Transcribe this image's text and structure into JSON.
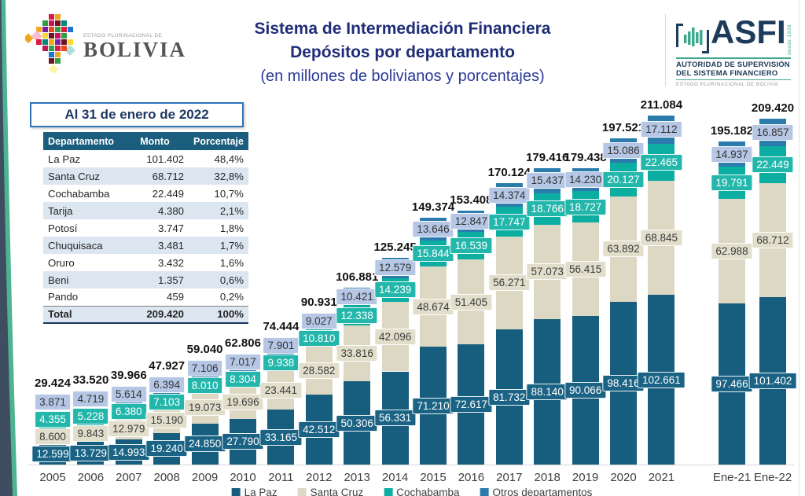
{
  "header": {
    "bolivia_logo": {
      "icon": "bolivia-mosaic-icon",
      "line1": "ESTADO PLURINACIONAL DE",
      "line2": "BOLIVIA"
    },
    "title_line1": "Sistema de Intermediación Financiera",
    "title_line2": "Depósitos por departamento",
    "title_line3": "(en millones de bolivianos y porcentajes)",
    "asfi": {
      "icon": "equalizer-bars-icon",
      "name": "ASFI",
      "since": "desde 1928",
      "sub1": "AUTORIDAD DE SUPERVISIÓN",
      "sub2": "DEL SISTEMA FINANCIERO",
      "sub3": "ESTADO PLURINACIONAL DE BOLIVIA"
    }
  },
  "summary": {
    "box_title": "Al 31 de enero de 2022",
    "table": {
      "headers": [
        "Departamento",
        "Monto",
        "Porcentaje"
      ],
      "rows": [
        [
          "La Paz",
          "101.402",
          "48,4%"
        ],
        [
          "Santa Cruz",
          "68.712",
          "32,8%"
        ],
        [
          "Cochabamba",
          "22.449",
          "10,7%"
        ],
        [
          "Tarija",
          "4.380",
          "2,1%"
        ],
        [
          "Potosí",
          "3.747",
          "1,8%"
        ],
        [
          "Chuquisaca",
          "3.481",
          "1,7%"
        ],
        [
          "Oruro",
          "3.432",
          "1,6%"
        ],
        [
          "Beni",
          "1.357",
          "0,6%"
        ],
        [
          "Pando",
          "459",
          "0,2%"
        ]
      ],
      "total_row": [
        "Total",
        "209.420",
        "100%"
      ]
    }
  },
  "chart_data": {
    "type": "bar",
    "subtype": "stacked",
    "title": "Depósitos por departamento (en millones de bolivianos)",
    "legend_position": "bottom",
    "y_axis_visible": false,
    "categories": [
      "2005",
      "2006",
      "2007",
      "2008",
      "2009",
      "2010",
      "2011",
      "2012",
      "2013",
      "2014",
      "2015",
      "2016",
      "2017",
      "2018",
      "2019",
      "2020",
      "2021",
      "Ene-21",
      "Ene-22"
    ],
    "series": [
      {
        "name": "La Paz",
        "color": "#175e7e",
        "label_bg": "#1b6384",
        "label_color": "#ffffff",
        "values": [
          12599,
          13729,
          14993,
          19240,
          24850,
          27790,
          33165,
          42512,
          50306,
          56331,
          71210,
          72617,
          81732,
          88140,
          90066,
          98416,
          102661,
          97466,
          101402
        ]
      },
      {
        "name": "Santa Cruz",
        "color": "#ddd8c3",
        "label_bg": "#e2decc",
        "label_color": "#3b3b3b",
        "values": [
          8600,
          9843,
          12979,
          15190,
          19073,
          19696,
          23441,
          28582,
          33816,
          42096,
          48674,
          51405,
          56271,
          57073,
          56415,
          63892,
          68845,
          62988,
          68712
        ]
      },
      {
        "name": "Cochabamba",
        "color": "#0daea2",
        "label_bg": "#23b7ab",
        "label_color": "#ffffff",
        "values": [
          4355,
          5228,
          6380,
          7103,
          8010,
          8304,
          9938,
          10810,
          12338,
          14239,
          15844,
          16539,
          17747,
          18766,
          18727,
          20127,
          22465,
          19791,
          22449
        ]
      },
      {
        "name": "Otros departamentos",
        "color": "#2b7cad",
        "label_bg": "#b6c7e6",
        "label_color": "#333333",
        "values": [
          3871,
          4719,
          5614,
          6394,
          7106,
          7017,
          7901,
          9027,
          10421,
          12579,
          13646,
          12847,
          14374,
          15437,
          14230,
          15086,
          17112,
          14937,
          16857
        ]
      }
    ],
    "totals": [
      29424,
      33520,
      39966,
      47927,
      59040,
      62806,
      74444,
      90931,
      106881,
      125245,
      149374,
      153408,
      170124,
      179416,
      179438,
      197521,
      211084,
      195182,
      209420
    ]
  }
}
